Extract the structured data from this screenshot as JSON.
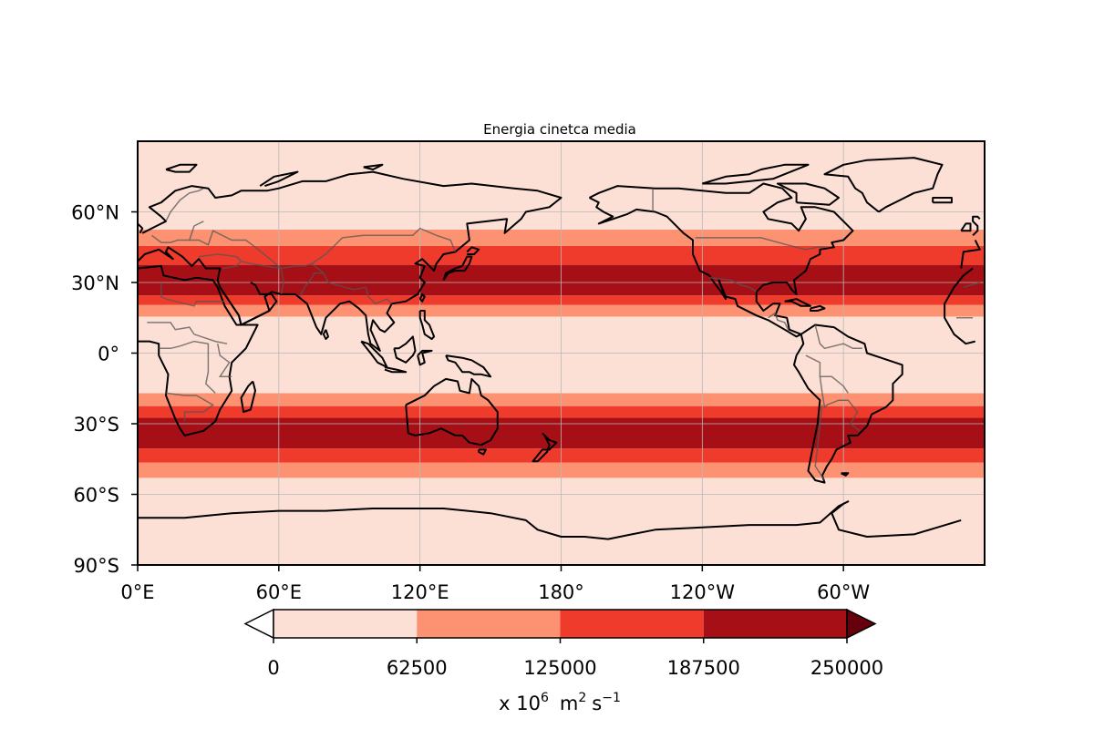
{
  "title": "Energia cinetca media",
  "colors": {
    "levels": [
      "#fde0d5",
      "#fc9272",
      "#ef3b2c",
      "#a50f15"
    ],
    "under": "#ffffff",
    "over": "#67000d",
    "coast": "#000000",
    "border": "#555555",
    "grid": "#b8b8b8"
  },
  "axes": {
    "lon_ticks": [
      {
        "lon": 0,
        "label": "0°E"
      },
      {
        "lon": 60,
        "label": "60°E"
      },
      {
        "lon": 120,
        "label": "120°E"
      },
      {
        "lon": 180,
        "label": "180°"
      },
      {
        "lon": 240,
        "label": "120°W"
      },
      {
        "lon": 300,
        "label": "60°W"
      }
    ],
    "lat_ticks": [
      {
        "lat": 60,
        "label": "60°N"
      },
      {
        "lat": 30,
        "label": "30°N"
      },
      {
        "lat": 0,
        "label": "0°"
      },
      {
        "lat": -30,
        "label": "30°S"
      },
      {
        "lat": -60,
        "label": "60°S"
      },
      {
        "lat": -90,
        "label": "90°S"
      }
    ],
    "lon_range": [
      0,
      360
    ],
    "lat_range": [
      -90,
      90
    ],
    "gridlines": true
  },
  "colorbar": {
    "ticks": [
      "0",
      "62500",
      "125000",
      "187500",
      "250000"
    ],
    "unit_prefix": "x 10",
    "unit_exp": "6",
    "unit_m": "m",
    "unit_m_exp": "2",
    "unit_s": "s",
    "unit_s_exp": "−1"
  },
  "chart_data": {
    "type": "heatmap",
    "title": "Energia cinetca media",
    "bounds": [
      0,
      62500,
      125000,
      187500,
      250000
    ],
    "extend": "both",
    "bands": [
      {
        "lat_min": -90,
        "lat_max": -53,
        "level": 0
      },
      {
        "lat_min": -53,
        "lat_max": -46.5,
        "level": 1
      },
      {
        "lat_min": -46.5,
        "lat_max": -40.5,
        "level": 2
      },
      {
        "lat_min": -40.5,
        "lat_max": -27.5,
        "level": 3
      },
      {
        "lat_min": -27.5,
        "lat_max": -22.5,
        "level": 2
      },
      {
        "lat_min": -22.5,
        "lat_max": -17,
        "level": 1
      },
      {
        "lat_min": -17,
        "lat_max": 15.5,
        "level": 0
      },
      {
        "lat_min": 15.5,
        "lat_max": 20.5,
        "level": 1
      },
      {
        "lat_min": 20.5,
        "lat_max": 24.5,
        "level": 2
      },
      {
        "lat_min": 24.5,
        "lat_max": 37.5,
        "level": 3
      },
      {
        "lat_min": 37.5,
        "lat_max": 45.5,
        "level": 2
      },
      {
        "lat_min": 45.5,
        "lat_max": 52.5,
        "level": 1
      },
      {
        "lat_min": 52.5,
        "lat_max": 90,
        "level": 0
      }
    ]
  }
}
